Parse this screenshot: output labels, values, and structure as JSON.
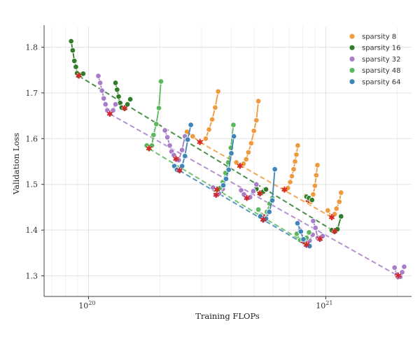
{
  "chart_data": {
    "type": "scatter",
    "title": "",
    "xlabel": "Training FLOPs",
    "ylabel": "Validation Loss",
    "xscale": "log",
    "xlim": [
      6.5e+19,
      2.3e+21
    ],
    "ylim": [
      1.255,
      1.845
    ],
    "grid": true,
    "legend_position": "top-right",
    "x_ticks": [
      {
        "value": 1e+20,
        "base": "10",
        "exp": "20"
      },
      {
        "value": 1e+21,
        "base": "10",
        "exp": "21"
      }
    ],
    "y_ticks": [
      1.3,
      1.4,
      1.5,
      1.6,
      1.7,
      1.8
    ],
    "series": [
      {
        "name": "sparsity 8",
        "color": "#ef9a3e",
        "groups": [
          {
            "points": [
              [
                2.6e+20,
                1.615
              ],
              [
                2.75e+20,
                1.605
              ],
              [
                2.95e+20,
                1.592
              ],
              [
                3.12e+20,
                1.6
              ],
              [
                3.22e+20,
                1.62
              ],
              [
                3.32e+20,
                1.642
              ],
              [
                3.42e+20,
                1.668
              ],
              [
                3.52e+20,
                1.703
              ]
            ],
            "optimum": [
              2.95e+20,
              1.592
            ]
          },
          {
            "points": [
              [
                4.2e+20,
                1.548
              ],
              [
                4.35e+20,
                1.54
              ],
              [
                4.5e+20,
                1.545
              ],
              [
                4.62e+20,
                1.555
              ],
              [
                4.72e+20,
                1.57
              ],
              [
                4.85e+20,
                1.59
              ],
              [
                4.98e+20,
                1.617
              ],
              [
                5.1e+20,
                1.64
              ],
              [
                5.2e+20,
                1.682
              ]
            ],
            "optimum": [
              4.35e+20,
              1.54
            ]
          },
          {
            "points": [
              [
                6.7e+20,
                1.488
              ],
              [
                6.92e+20,
                1.492
              ],
              [
                7.08e+20,
                1.505
              ],
              [
                7.2e+20,
                1.518
              ],
              [
                7.32e+20,
                1.533
              ],
              [
                7.42e+20,
                1.55
              ],
              [
                7.52e+20,
                1.565
              ],
              [
                7.62e+20,
                1.585
              ]
            ],
            "optimum": [
              6.7e+20,
              1.488
            ]
          },
          {
            "points": [
              [
                8.25e+20,
                1.475
              ],
              [
                8.45e+20,
                1.465
              ],
              [
                8.65e+20,
                1.462
              ],
              [
                8.85e+20,
                1.478
              ],
              [
                9e+20,
                1.497
              ],
              [
                9.12e+20,
                1.52
              ],
              [
                9.22e+20,
                1.542
              ]
            ],
            "optimum": [
              8.45e+20,
              1.465
            ]
          },
          {
            "points": [
              [
                1.02e+21,
                1.443
              ],
              [
                1.06e+21,
                1.428
              ],
              [
                1.09e+21,
                1.435
              ],
              [
                1.11e+21,
                1.447
              ],
              [
                1.14e+21,
                1.462
              ],
              [
                1.16e+21,
                1.482
              ]
            ],
            "optimum": [
              1.06e+21,
              1.428
            ]
          }
        ]
      },
      {
        "name": "sparsity 16",
        "color": "#2f7d2b",
        "groups": [
          {
            "points": [
              [
                8.45e+19,
                1.813
              ],
              [
                8.58e+19,
                1.793
              ],
              [
                8.72e+19,
                1.77
              ],
              [
                8.85e+19,
                1.757
              ],
              [
                8.95e+19,
                1.743
              ],
              [
                9.1e+19,
                1.737
              ],
              [
                9.3e+19,
                1.74
              ],
              [
                9.5e+19,
                1.742
              ]
            ],
            "optimum": [
              9.1e+19,
              1.737
            ]
          },
          {
            "points": [
              [
                1.3e+20,
                1.722
              ],
              [
                1.32e+20,
                1.707
              ],
              [
                1.34e+20,
                1.692
              ],
              [
                1.36e+20,
                1.678
              ],
              [
                1.38e+20,
                1.668
              ],
              [
                1.42e+20,
                1.666
              ],
              [
                1.46e+20,
                1.675
              ],
              [
                1.5e+20,
                1.686
              ]
            ],
            "optimum": [
              1.42e+20,
              1.666
            ]
          },
          {
            "points": [
              [
                3.38e+20,
                1.49
              ],
              [
                3.5e+20,
                1.488
              ],
              [
                3.62e+20,
                1.485
              ]
            ],
            "optimum": null
          },
          {
            "points": [
              [
                5.1e+20,
                1.49
              ],
              [
                5.28e+20,
                1.48
              ],
              [
                5.45e+20,
                1.484
              ],
              [
                5.6e+20,
                1.489
              ]
            ],
            "optimum": [
              5.28e+20,
              1.48
            ]
          },
          {
            "points": [
              [
                8.3e+20,
                1.473
              ],
              [
                8.5e+20,
                1.47
              ],
              [
                8.75e+20,
                1.466
              ]
            ],
            "optimum": null
          },
          {
            "points": [
              [
                1.06e+21,
                1.4
              ],
              [
                1.09e+21,
                1.397
              ],
              [
                1.12e+21,
                1.402
              ],
              [
                1.16e+21,
                1.43
              ]
            ],
            "optimum": [
              1.09e+21,
              1.397
            ]
          }
        ]
      },
      {
        "name": "sparsity 32",
        "color": "#a97ec8",
        "groups": [
          {
            "points": [
              [
                1.1e+20,
                1.737
              ],
              [
                1.12e+20,
                1.722
              ],
              [
                1.14e+20,
                1.705
              ],
              [
                1.16e+20,
                1.688
              ],
              [
                1.18e+20,
                1.675
              ],
              [
                1.2e+20,
                1.662
              ],
              [
                1.23e+20,
                1.654
              ],
              [
                1.27e+20,
                1.662
              ],
              [
                1.3e+20,
                1.675
              ]
            ],
            "optimum": [
              1.23e+20,
              1.654
            ]
          },
          {
            "points": [
              [
                2.1e+20,
                1.618
              ],
              [
                2.15e+20,
                1.603
              ],
              [
                2.2e+20,
                1.585
              ],
              [
                2.24e+20,
                1.572
              ],
              [
                2.29e+20,
                1.564
              ],
              [
                2.34e+20,
                1.555
              ],
              [
                2.4e+20,
                1.553
              ],
              [
                2.48e+20,
                1.575
              ],
              [
                2.55e+20,
                1.605
              ]
            ],
            "optimum": [
              2.34e+20,
              1.555
            ]
          },
          {
            "points": [
              [
                3.35e+20,
                1.493
              ],
              [
                3.45e+20,
                1.477
              ],
              [
                3.55e+20,
                1.48
              ],
              [
                3.68e+20,
                1.49
              ]
            ],
            "optimum": [
              3.45e+20,
              1.477
            ]
          },
          {
            "points": [
              [
                4.4e+20,
                1.487
              ],
              [
                4.52e+20,
                1.478
              ],
              [
                4.65e+20,
                1.47
              ],
              [
                4.8e+20,
                1.472
              ],
              [
                4.95e+20,
                1.485
              ],
              [
                5.1e+20,
                1.5
              ]
            ],
            "optimum": [
              4.65e+20,
              1.47
            ]
          },
          {
            "points": [
              [
                7.8e+20,
                1.4
              ],
              [
                8.05e+20,
                1.38
              ],
              [
                8.3e+20,
                1.37
              ],
              [
                8.55e+20,
                1.377
              ],
              [
                8.8e+20,
                1.39
              ]
            ],
            "optimum": [
              8.3e+20,
              1.37
            ]
          },
          {
            "points": [
              [
                8.85e+20,
                1.42
              ],
              [
                9.05e+20,
                1.405
              ],
              [
                9.25e+20,
                1.383
              ],
              [
                9.45e+20,
                1.38
              ],
              [
                9.7e+20,
                1.387
              ]
            ],
            "optimum": [
              9.45e+20,
              1.38
            ]
          },
          {
            "points": [
              [
                1.95e+21,
                1.318
              ],
              [
                1.99e+21,
                1.303
              ],
              [
                2.02e+21,
                1.297
              ],
              [
                2.06e+21,
                1.298
              ],
              [
                2.1e+21,
                1.308
              ],
              [
                2.14e+21,
                1.32
              ]
            ],
            "optimum": [
              2.02e+21,
              1.3
            ]
          }
        ]
      },
      {
        "name": "sparsity 48",
        "color": "#5cb85c",
        "groups": [
          {
            "points": [
              [
                1.76e+20,
                1.585
              ],
              [
                1.8e+20,
                1.578
              ],
              [
                1.85e+20,
                1.585
              ],
              [
                1.88e+20,
                1.608
              ],
              [
                1.93e+20,
                1.632
              ],
              [
                1.98e+20,
                1.667
              ],
              [
                2.02e+20,
                1.725
              ]
            ],
            "optimum": [
              1.8e+20,
              1.578
            ]
          },
          {
            "points": [
              [
                3.48e+20,
                1.488
              ],
              [
                3.58e+20,
                1.492
              ],
              [
                3.68e+20,
                1.505
              ],
              [
                3.78e+20,
                1.525
              ],
              [
                3.88e+20,
                1.548
              ],
              [
                3.98e+20,
                1.58
              ],
              [
                4.08e+20,
                1.63
              ]
            ],
            "optimum": [
              3.48e+20,
              1.488
            ]
          },
          {
            "points": [
              [
                5.2e+20,
                1.445
              ],
              [
                5.35e+20,
                1.433
              ],
              [
                5.5e+20,
                1.428
              ],
              [
                5.65e+20,
                1.44
              ],
              [
                5.8e+20,
                1.458
              ],
              [
                5.95e+20,
                1.47
              ]
            ],
            "optimum": [
              5.5e+20,
              1.428
            ]
          },
          {
            "points": [
              [
                7.55e+20,
                1.392
              ],
              [
                7.8e+20,
                1.378
              ],
              [
                8.05e+20,
                1.375
              ],
              [
                8.3e+20,
                1.383
              ],
              [
                8.5e+20,
                1.395
              ]
            ],
            "optimum": [
              8.05e+20,
              1.375
            ]
          }
        ]
      },
      {
        "name": "sparsity 64",
        "color": "#3f85b9",
        "groups": [
          {
            "points": [
              [
                2.3e+20,
                1.54
              ],
              [
                2.36e+20,
                1.532
              ],
              [
                2.42e+20,
                1.53
              ],
              [
                2.48e+20,
                1.54
              ],
              [
                2.55e+20,
                1.562
              ],
              [
                2.62e+20,
                1.598
              ],
              [
                2.7e+20,
                1.63
              ]
            ],
            "optimum": [
              2.42e+20,
              1.53
            ]
          },
          {
            "points": [
              [
                3.7e+20,
                1.498
              ],
              [
                3.8e+20,
                1.512
              ],
              [
                3.9e+20,
                1.532
              ],
              [
                4e+20,
                1.568
              ],
              [
                4.1e+20,
                1.605
              ]
            ],
            "optimum": null
          },
          {
            "points": [
              [
                5.3e+20,
                1.43
              ],
              [
                5.45e+20,
                1.422
              ],
              [
                5.6e+20,
                1.425
              ],
              [
                5.78e+20,
                1.44
              ],
              [
                5.95e+20,
                1.465
              ],
              [
                6.1e+20,
                1.533
              ]
            ],
            "optimum": [
              5.45e+20,
              1.422
            ]
          },
          {
            "points": [
              [
                7.6e+20,
                1.415
              ],
              [
                7.85e+20,
                1.397
              ],
              [
                8.05e+20,
                1.38
              ],
              [
                8.3e+20,
                1.367
              ],
              [
                8.55e+20,
                1.365
              ]
            ],
            "optimum": [
              8.3e+20,
              1.367
            ]
          }
        ]
      }
    ],
    "trend_lines": [
      {
        "color": "#ef9a3e",
        "from": [
          2.95e+20,
          1.592
        ],
        "to": [
          1.06e+21,
          1.428
        ]
      },
      {
        "color": "#2f7d2b",
        "from": [
          9.1e+19,
          1.737
        ],
        "to": [
          1.09e+21,
          1.397
        ]
      },
      {
        "color": "#a97ec8",
        "from": [
          1.23e+20,
          1.654
        ],
        "to": [
          2.02e+21,
          1.3
        ]
      },
      {
        "color": "#5cb85c",
        "from": [
          1.8e+20,
          1.578
        ],
        "to": [
          8.05e+20,
          1.375
        ]
      },
      {
        "color": "#3f85b9",
        "from": [
          2.42e+20,
          1.53
        ],
        "to": [
          8.3e+20,
          1.367
        ]
      }
    ]
  }
}
